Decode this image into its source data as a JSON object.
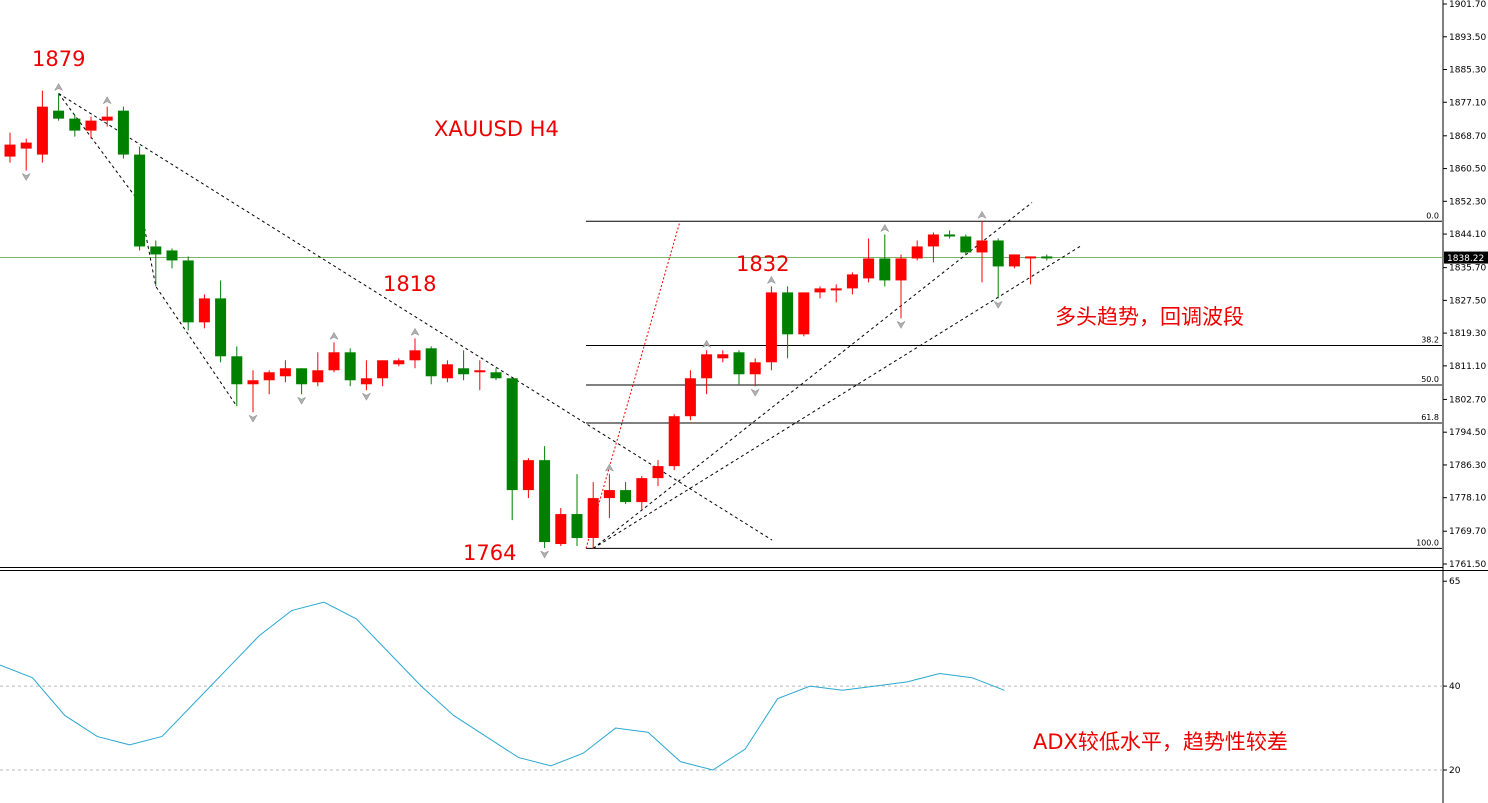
{
  "colors": {
    "bull": "#ff0000",
    "bear": "#008000",
    "fib": "#000000",
    "adx": "#2aa8d0",
    "current_line": "#6aa84f",
    "label": "#ee0000",
    "fractal": "#b0b0b0"
  },
  "chart_data": [
    {
      "type": "candlestick",
      "title": "XAUUSD  H4",
      "symbol": "XAUUSD",
      "timeframe": "H4",
      "ylim": [
        1761.5,
        1901.7
      ],
      "y_ticks": [
        "1901.70",
        "1893.50",
        "1885.30",
        "1877.10",
        "1868.70",
        "1860.50",
        "1852.30",
        "1844.10",
        "1835.70",
        "1827.50",
        "1819.30",
        "1811.10",
        "1802.70",
        "1794.50",
        "1786.30",
        "1778.10",
        "1769.70",
        "1761.50"
      ],
      "current_price": "1838.22",
      "annotations": [
        "1879",
        "1818",
        "1764",
        "1832"
      ],
      "comment": "多头趋势，回调波段",
      "fibonacci": {
        "high": 1847.3,
        "low": 1765.4,
        "levels": [
          {
            "label": "0.0",
            "value": 1847.3
          },
          {
            "label": "38.2",
            "value": 1816.2
          },
          {
            "label": "50.0",
            "value": 1806.3
          },
          {
            "label": "61.8",
            "value": 1796.8
          },
          {
            "label": "100.0",
            "value": 1765.4
          }
        ]
      },
      "candles": [
        [
          1863.5,
          1869.5,
          1862.0,
          1866.5
        ],
        [
          1865.5,
          1868.0,
          1860.0,
          1867.0
        ],
        [
          1864.0,
          1880.0,
          1862.0,
          1876.0
        ],
        [
          1875.0,
          1879.3,
          1872.5,
          1873.0
        ],
        [
          1873.0,
          1874.0,
          1868.5,
          1870.0
        ],
        [
          1870.0,
          1873.5,
          1868.0,
          1872.5
        ],
        [
          1872.5,
          1876.0,
          1871.0,
          1873.5
        ],
        [
          1875.0,
          1876.0,
          1863.0,
          1864.0
        ],
        [
          1864.0,
          1866.0,
          1840.0,
          1841.0
        ],
        [
          1841.0,
          1842.5,
          1831.0,
          1839.0
        ],
        [
          1840.0,
          1840.5,
          1835.5,
          1837.5
        ],
        [
          1837.5,
          1838.5,
          1820.0,
          1822.0
        ],
        [
          1822.0,
          1829.0,
          1820.5,
          1828.0
        ],
        [
          1828.0,
          1832.5,
          1812.0,
          1813.5
        ],
        [
          1813.5,
          1816.0,
          1801.0,
          1806.5
        ],
        [
          1806.5,
          1810.0,
          1799.5,
          1807.5
        ],
        [
          1807.5,
          1810.0,
          1804.0,
          1809.5
        ],
        [
          1808.5,
          1812.5,
          1807.0,
          1810.5
        ],
        [
          1810.5,
          1810.5,
          1804.0,
          1806.5
        ],
        [
          1807.0,
          1814.5,
          1806.0,
          1810.0
        ],
        [
          1810.0,
          1817.0,
          1809.5,
          1814.5
        ],
        [
          1814.5,
          1815.5,
          1806.0,
          1807.5
        ],
        [
          1806.5,
          1812.5,
          1805.0,
          1808.0
        ],
        [
          1808.0,
          1812.5,
          1806.0,
          1812.5
        ],
        [
          1811.5,
          1813.0,
          1811.0,
          1812.5
        ],
        [
          1812.5,
          1818.0,
          1810.5,
          1815.0
        ],
        [
          1815.5,
          1816.0,
          1806.5,
          1808.5
        ],
        [
          1808.0,
          1812.5,
          1807.0,
          1811.5
        ],
        [
          1810.5,
          1815.0,
          1807.5,
          1809.0
        ],
        [
          1809.5,
          1812.5,
          1805.0,
          1810.0
        ],
        [
          1809.5,
          1810.5,
          1807.5,
          1808.0
        ],
        [
          1808.0,
          1808.0,
          1772.5,
          1780.0
        ],
        [
          1780.0,
          1788.0,
          1778.0,
          1787.5
        ],
        [
          1787.5,
          1791.0,
          1765.5,
          1767.0
        ],
        [
          1766.5,
          1775.5,
          1766.0,
          1774.0
        ],
        [
          1774.0,
          1784.0,
          1766.0,
          1768.0
        ],
        [
          1768.0,
          1782.0,
          1765.4,
          1778.0
        ],
        [
          1778.0,
          1784.0,
          1773.0,
          1780.0
        ],
        [
          1780.0,
          1782.0,
          1776.5,
          1777.0
        ],
        [
          1777.0,
          1783.5,
          1775.0,
          1783.0
        ],
        [
          1783.0,
          1787.5,
          1781.0,
          1786.0
        ],
        [
          1786.0,
          1799.0,
          1785.0,
          1798.5
        ],
        [
          1798.5,
          1810.0,
          1797.5,
          1808.0
        ],
        [
          1808.0,
          1815.0,
          1804.0,
          1814.0
        ],
        [
          1813.0,
          1815.0,
          1812.0,
          1814.0
        ],
        [
          1814.5,
          1815.0,
          1806.5,
          1809.0
        ],
        [
          1809.0,
          1813.0,
          1806.0,
          1812.0
        ],
        [
          1812.0,
          1831.0,
          1810.0,
          1829.5
        ],
        [
          1829.5,
          1831.0,
          1813.0,
          1819.0
        ],
        [
          1819.0,
          1829.5,
          1818.5,
          1829.5
        ],
        [
          1829.5,
          1831.0,
          1828.0,
          1830.5
        ],
        [
          1830.0,
          1831.5,
          1827.0,
          1830.5
        ],
        [
          1830.5,
          1834.5,
          1829.0,
          1834.0
        ],
        [
          1833.0,
          1843.0,
          1832.0,
          1838.0
        ],
        [
          1838.0,
          1844.0,
          1831.0,
          1832.5
        ],
        [
          1832.5,
          1839.0,
          1823.0,
          1838.0
        ],
        [
          1838.0,
          1842.5,
          1837.5,
          1841.0
        ],
        [
          1841.0,
          1844.5,
          1837.0,
          1844.0
        ],
        [
          1844.0,
          1845.0,
          1843.0,
          1843.5
        ],
        [
          1843.5,
          1844.0,
          1839.0,
          1839.5
        ],
        [
          1839.5,
          1847.3,
          1832.0,
          1842.5
        ],
        [
          1842.5,
          1843.0,
          1828.0,
          1836.0
        ],
        [
          1836.0,
          1839.0,
          1835.5,
          1839.0
        ],
        [
          1838.0,
          1838.5,
          1831.5,
          1838.5
        ],
        [
          1838.5,
          1839.0,
          1837.5,
          1838.0
        ]
      ]
    },
    {
      "type": "line",
      "indicator": "ADX",
      "ylim": [
        15,
        66
      ],
      "y_ticks": [
        "65",
        "40",
        "20"
      ],
      "grid_levels": [
        40,
        20
      ],
      "comment": "ADX较低水平，趋势性较差",
      "x": [
        0,
        2,
        4,
        6,
        8,
        10,
        12,
        14,
        16,
        18,
        20,
        22,
        24,
        26,
        28,
        30,
        32,
        34,
        36,
        38,
        40,
        42,
        44,
        46,
        48,
        50,
        52,
        54,
        56,
        58,
        60,
        62
      ],
      "values": [
        45,
        42,
        33,
        28,
        26,
        28,
        36,
        44,
        52,
        58,
        60,
        56,
        48,
        40,
        33,
        28,
        23,
        21,
        24,
        30,
        29,
        22,
        20,
        25,
        37,
        40,
        39,
        40,
        41,
        43,
        42,
        39
      ]
    }
  ]
}
